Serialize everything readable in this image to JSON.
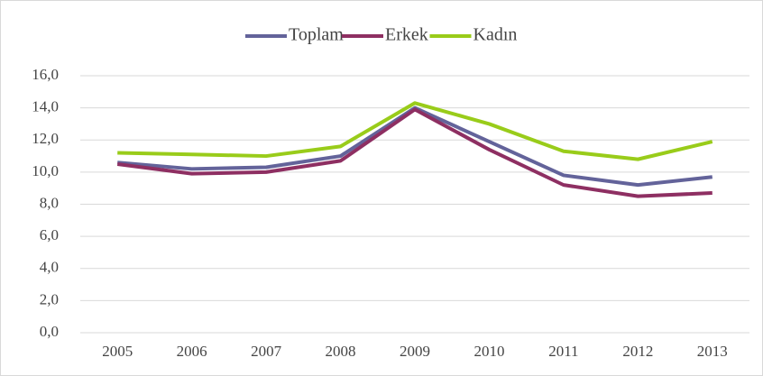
{
  "chart_data": {
    "type": "line",
    "categories": [
      "2005",
      "2006",
      "2007",
      "2008",
      "2009",
      "2010",
      "2011",
      "2012",
      "2013"
    ],
    "series": [
      {
        "name": "Toplam",
        "color": "#63639a",
        "values": [
          10.6,
          10.2,
          10.3,
          11.0,
          14.0,
          11.9,
          9.8,
          9.2,
          9.7
        ]
      },
      {
        "name": "Erkek",
        "color": "#8e2f62",
        "values": [
          10.5,
          9.9,
          10.0,
          10.7,
          13.9,
          11.4,
          9.2,
          8.5,
          8.7
        ]
      },
      {
        "name": "Kadın",
        "color": "#99cc1a",
        "values": [
          11.2,
          11.1,
          11.0,
          11.6,
          14.3,
          13.0,
          11.3,
          10.8,
          11.9
        ]
      }
    ],
    "ylim": [
      0,
      16
    ],
    "yticks": [
      {
        "value": 0,
        "label": "0,0"
      },
      {
        "value": 2,
        "label": "2,0"
      },
      {
        "value": 4,
        "label": "4,0"
      },
      {
        "value": 6,
        "label": "6,0"
      },
      {
        "value": 8,
        "label": "8,0"
      },
      {
        "value": 10,
        "label": "10,0"
      },
      {
        "value": 12,
        "label": "12,0"
      },
      {
        "value": 14,
        "label": "14,0"
      },
      {
        "value": 16,
        "label": "16,0"
      }
    ],
    "grid": true,
    "legend": "top"
  }
}
